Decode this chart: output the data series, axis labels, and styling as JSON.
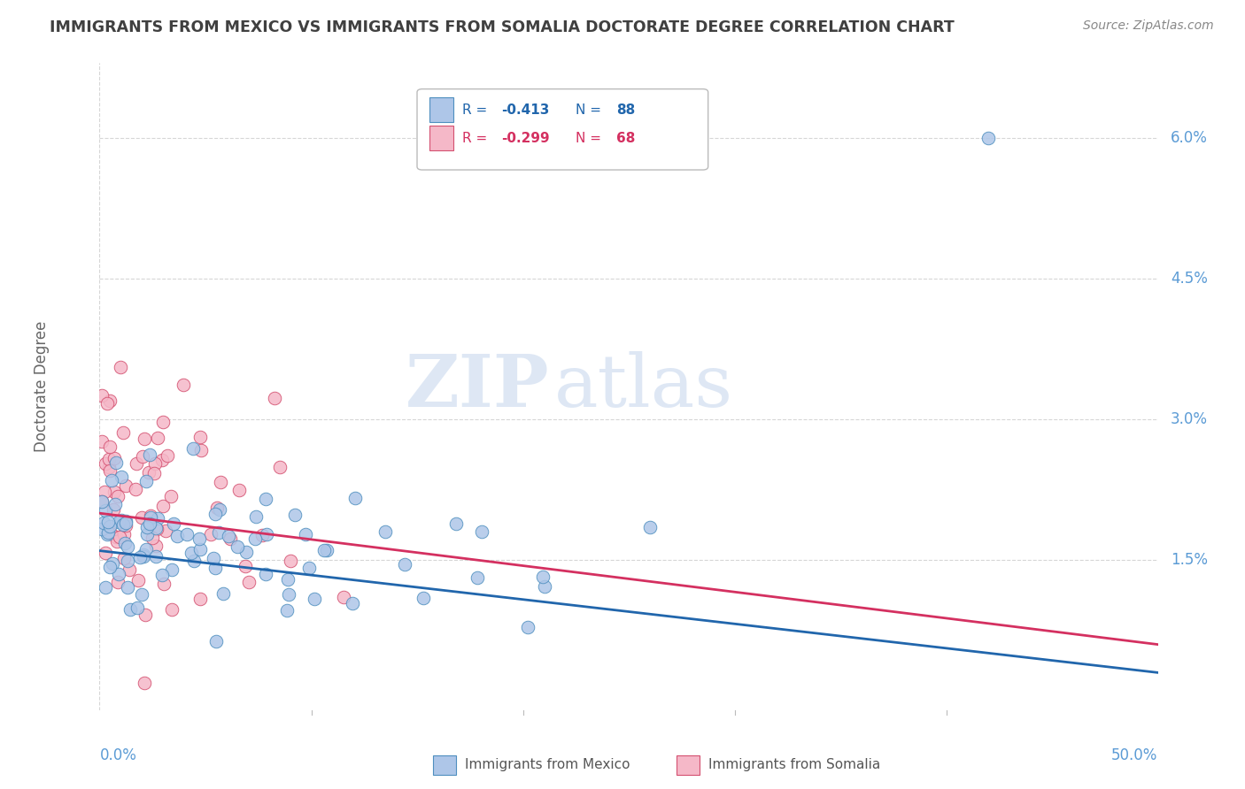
{
  "title": "IMMIGRANTS FROM MEXICO VS IMMIGRANTS FROM SOMALIA DOCTORATE DEGREE CORRELATION CHART",
  "source": "Source: ZipAtlas.com",
  "ylabel": "Doctorate Degree",
  "xlim": [
    0.0,
    0.5
  ],
  "ylim": [
    -0.001,
    0.068
  ],
  "yticks": [
    0.0,
    0.015,
    0.03,
    0.045,
    0.06
  ],
  "ytick_labels": [
    "",
    "1.5%",
    "3.0%",
    "4.5%",
    "6.0%"
  ],
  "mexico_color": "#aec6e8",
  "mexico_edge_color": "#4f8fbf",
  "somalia_color": "#f5b8c8",
  "somalia_edge_color": "#d45070",
  "legend_mexico_label": "Immigrants from Mexico",
  "legend_somalia_label": "Immigrants from Somalia",
  "mexico_R": "-0.413",
  "mexico_N": "88",
  "somalia_R": "-0.299",
  "somalia_N": "68",
  "mexico_line_color": "#2166ac",
  "somalia_line_color": "#d43060",
  "watermark_zip": "ZIP",
  "watermark_atlas": "atlas",
  "background_color": "#ffffff",
  "grid_color": "#cccccc",
  "title_color": "#404040",
  "axis_label_color": "#5b9bd5",
  "tick_color": "#888888"
}
